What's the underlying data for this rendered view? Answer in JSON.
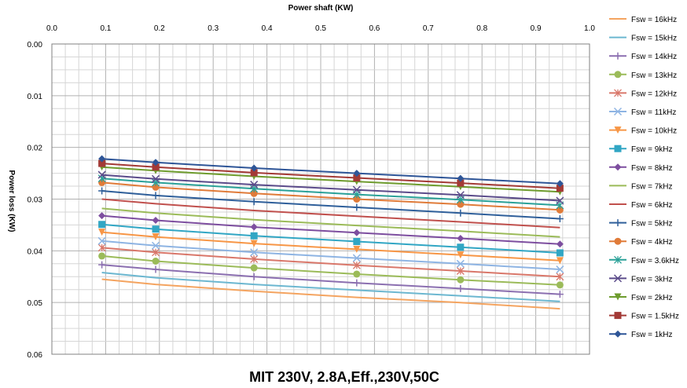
{
  "chart_data": {
    "type": "line",
    "title": "MIT 230V, 2.8A,Eff.,230V,50C",
    "xlabel": "Power shaft (KW)",
    "ylabel": "Power loss (KW)",
    "x_axis_position": "top",
    "y_axis_inverted": true,
    "xlim": [
      0.0,
      1.0
    ],
    "ylim": [
      0.0,
      0.06
    ],
    "x_ticks": [
      "0.0",
      "0.1",
      "0.2",
      "0.3",
      "0.4",
      "0.5",
      "0.6",
      "0.7",
      "0.8",
      "0.9",
      "1.0"
    ],
    "y_ticks": [
      "0.00",
      "0.01",
      "0.02",
      "0.03",
      "0.04",
      "0.05",
      "0.06"
    ],
    "grid": true,
    "legend_position": "right",
    "x": [
      0.093,
      0.193,
      0.376,
      0.567,
      0.76,
      0.945
    ],
    "series": [
      {
        "name": "Fsw = 16kHz",
        "color": "#f4a460",
        "marker": "none",
        "values": [
          0.0455,
          0.0465,
          0.0478,
          0.049,
          0.05,
          0.0512
        ]
      },
      {
        "name": "Fsw = 15kHz",
        "color": "#6cb7d0",
        "marker": "none",
        "values": [
          0.0442,
          0.0452,
          0.0465,
          0.0476,
          0.0487,
          0.0498
        ]
      },
      {
        "name": "Fsw = 14kHz",
        "color": "#8b6fb0",
        "marker": "plus",
        "values": [
          0.0427,
          0.0436,
          0.045,
          0.0462,
          0.0473,
          0.0484
        ]
      },
      {
        "name": "Fsw = 13kHz",
        "color": "#9bbb59",
        "marker": "circle",
        "values": [
          0.041,
          0.042,
          0.0433,
          0.0445,
          0.0456,
          0.0466
        ]
      },
      {
        "name": "Fsw = 12kHz",
        "color": "#d9776a",
        "marker": "star",
        "values": [
          0.0394,
          0.0403,
          0.0416,
          0.0428,
          0.0439,
          0.045
        ]
      },
      {
        "name": "Fsw = 11kHz",
        "color": "#8eb4e3",
        "marker": "x",
        "values": [
          0.0381,
          0.039,
          0.0403,
          0.0414,
          0.0425,
          0.0436
        ]
      },
      {
        "name": "Fsw = 10kHz",
        "color": "#f79646",
        "marker": "triangle-down",
        "values": [
          0.0364,
          0.0373,
          0.0386,
          0.0397,
          0.0408,
          0.0419
        ]
      },
      {
        "name": "Fsw = 9kHz",
        "color": "#31a6c4",
        "marker": "square",
        "values": [
          0.0349,
          0.0358,
          0.0371,
          0.0382,
          0.0393,
          0.0404
        ]
      },
      {
        "name": "Fsw = 8kHz",
        "color": "#7d4e9f",
        "marker": "diamond",
        "values": [
          0.0332,
          0.0341,
          0.0354,
          0.0365,
          0.0376,
          0.0387
        ]
      },
      {
        "name": "Fsw = 7kHz",
        "color": "#9bbb59",
        "marker": "none",
        "values": [
          0.0318,
          0.0327,
          0.034,
          0.0351,
          0.0362,
          0.0373
        ]
      },
      {
        "name": "Fsw = 6kHz",
        "color": "#c0504d",
        "marker": "none",
        "values": [
          0.03,
          0.0309,
          0.0322,
          0.0333,
          0.0344,
          0.0355
        ]
      },
      {
        "name": "Fsw = 5kHz",
        "color": "#2f5f9a",
        "marker": "plus",
        "values": [
          0.0284,
          0.0293,
          0.0305,
          0.0316,
          0.0327,
          0.0338
        ]
      },
      {
        "name": "Fsw = 4kHz",
        "color": "#e07b39",
        "marker": "circle",
        "values": [
          0.0268,
          0.0277,
          0.0289,
          0.03,
          0.031,
          0.0321
        ]
      },
      {
        "name": "Fsw = 3.6kHz",
        "color": "#2aa198",
        "marker": "star",
        "values": [
          0.026,
          0.0268,
          0.028,
          0.0291,
          0.0301,
          0.0312
        ]
      },
      {
        "name": "Fsw = 3kHz",
        "color": "#5b4b8a",
        "marker": "x",
        "values": [
          0.0253,
          0.0261,
          0.0272,
          0.0282,
          0.0292,
          0.0303
        ]
      },
      {
        "name": "Fsw = 2kHz",
        "color": "#6e9c2e",
        "marker": "triangle-down",
        "values": [
          0.0238,
          0.0245,
          0.0256,
          0.0266,
          0.0276,
          0.0286
        ]
      },
      {
        "name": "Fsw = 1.5kHz",
        "color": "#a33a36",
        "marker": "square",
        "values": [
          0.0231,
          0.0238,
          0.0249,
          0.0259,
          0.0269,
          0.0279
        ]
      },
      {
        "name": "Fsw = 1kHz",
        "color": "#2e5597",
        "marker": "diamond",
        "values": [
          0.0222,
          0.0229,
          0.024,
          0.025,
          0.026,
          0.027
        ]
      }
    ]
  }
}
